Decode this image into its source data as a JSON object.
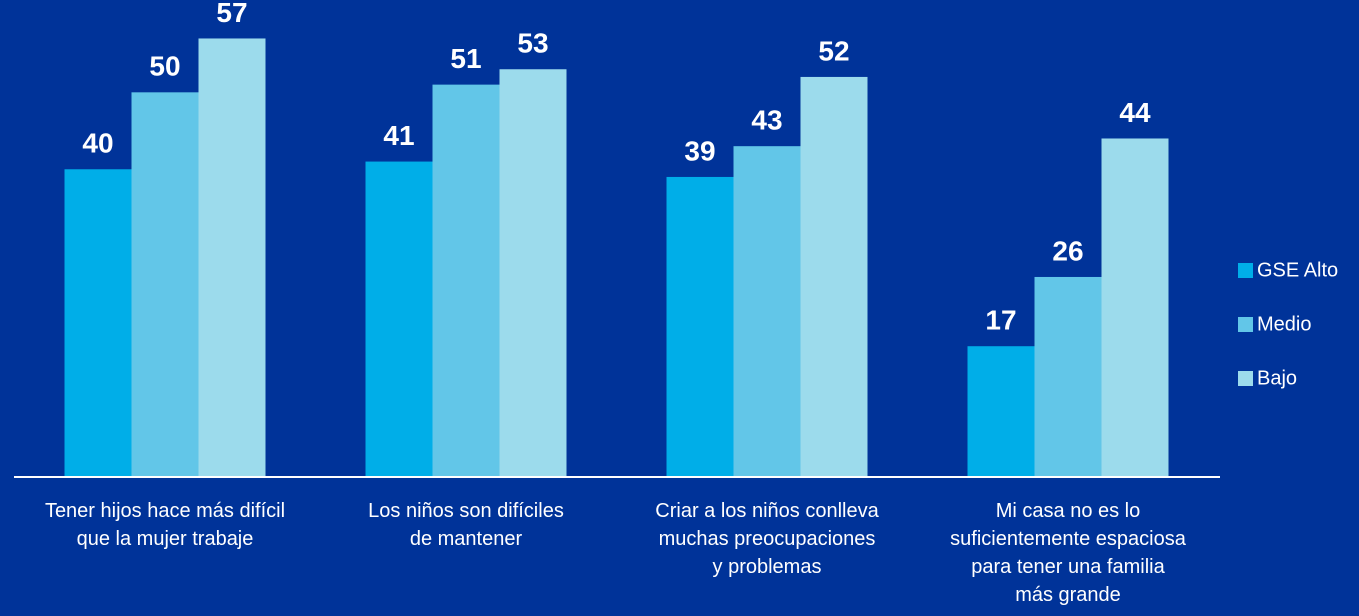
{
  "chart_data": {
    "type": "bar",
    "categories": [
      "Tener hijos hace más difícil\nque la mujer trabaje",
      "Los niños son difíciles\nde mantener",
      "Criar a los niños conlleva\nmuchas preocupaciones\ny problemas",
      "Mi casa no es lo\nsuficientemente espaciosa\npara tener una familia\nmás grande"
    ],
    "series": [
      {
        "name": "GSE Alto",
        "color": "#00aee8",
        "values": [
          40,
          41,
          39,
          17
        ]
      },
      {
        "name": "Medio",
        "color": "#62c6e8",
        "values": [
          50,
          51,
          43,
          26
        ]
      },
      {
        "name": "Bajo",
        "color": "#9cdbec",
        "values": [
          57,
          53,
          52,
          44
        ]
      }
    ],
    "ylim": [
      0,
      62
    ],
    "legend": "right"
  }
}
